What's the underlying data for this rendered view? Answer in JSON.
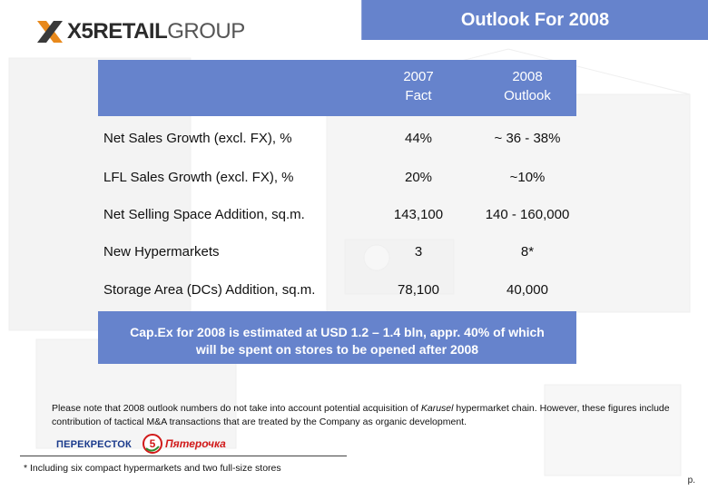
{
  "header": {
    "logo_bold": "X5",
    "logo_mid": "RETAIL",
    "logo_thin": "GROUP",
    "title": "Outlook For 2008"
  },
  "table": {
    "columns": [
      {
        "line1": "2007",
        "line2": "Fact"
      },
      {
        "line1": "2008",
        "line2": "Outlook"
      }
    ],
    "rows": [
      {
        "label": "Net Sales Growth (excl. FX), %",
        "fact": "44%",
        "outlook": "~ 36 - 38%"
      },
      {
        "label": "LFL Sales Growth (excl. FX), %",
        "fact": "20%",
        "outlook": "~10%"
      },
      {
        "label": "Net Selling Space Addition, sq.m.",
        "fact": "143,100",
        "outlook": "140 - 160,000"
      },
      {
        "label": "New Hypermarkets",
        "fact": "3",
        "outlook": "8*"
      },
      {
        "label": "Storage Area (DCs) Addition, sq.m.",
        "fact": "78,100",
        "outlook": "40,000"
      }
    ]
  },
  "capex": {
    "line1": "Cap.Ex for 2008 is estimated at USD 1.2 – 1.4 bln, appr. 40% of which",
    "line2": "will be spent on stores to be opened after 2008"
  },
  "note": {
    "part1": "Please note that 2008 outlook numbers do not take into account potential acquisition of ",
    "italic": "Karusel",
    "part2": " hypermarket chain.  However, these figures include contribution of tactical M&A transactions that are treated by the Company as organic development."
  },
  "brands": {
    "perekrestok": "ПЕРЕКРЕСТОК",
    "pyaterochka_num": "5",
    "pyaterochka": "Пятерочка"
  },
  "footnote": "* Including six compact hypermarkets and two full-size stores",
  "page_number": "p.",
  "colors": {
    "accent_blue": "#6683cc",
    "logo_orange": "#e8891c",
    "brand_red": "#d11a1a",
    "brand_blue": "#1a3a8c"
  }
}
